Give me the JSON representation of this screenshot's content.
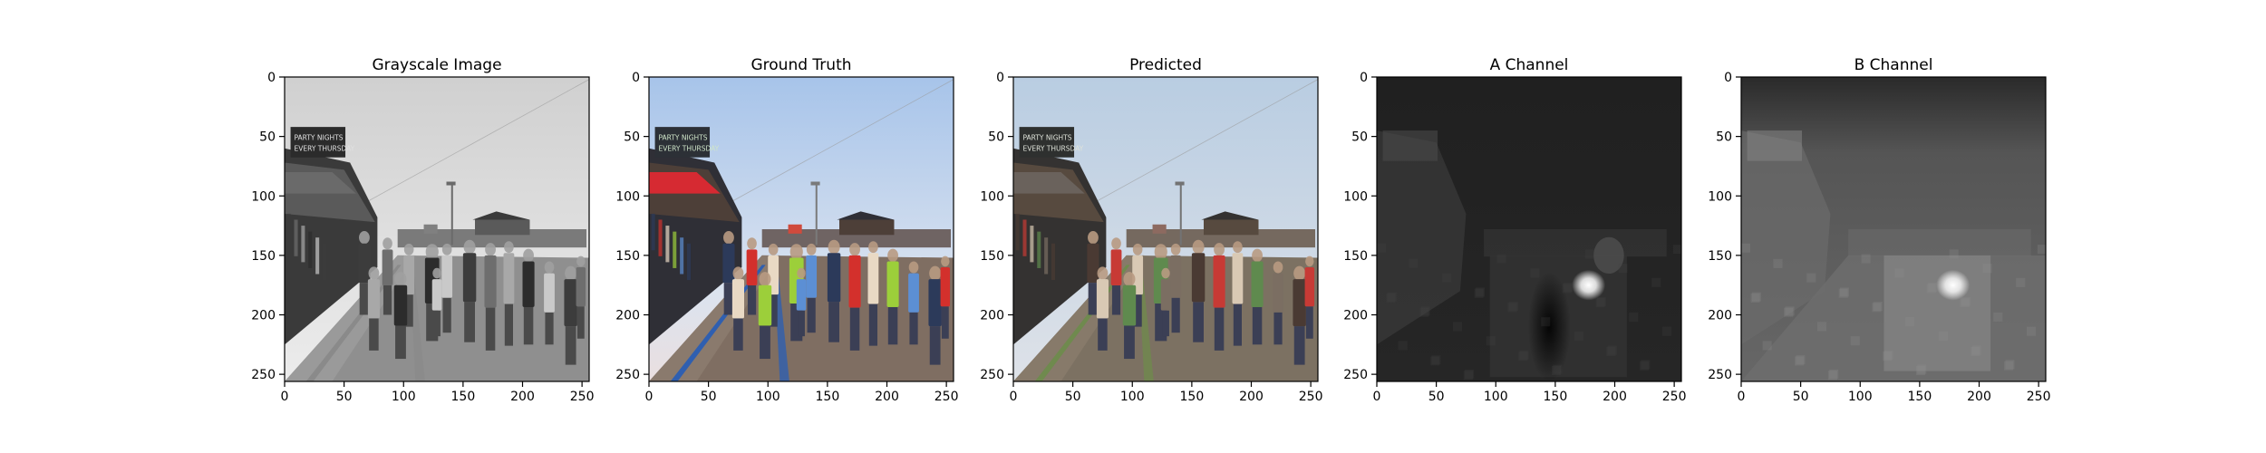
{
  "figure": {
    "background": "#ffffff"
  },
  "chart_data": [
    {
      "type": "heatmap",
      "title": "Grayscale Image",
      "content": "grayscale photo of a crowded boardwalk with shops and a sign",
      "colormap": "gray",
      "xlim": [
        0,
        256
      ],
      "ylim": [
        256,
        0
      ],
      "x_ticks": [
        0,
        50,
        100,
        150,
        200,
        250
      ],
      "y_ticks": [
        0,
        50,
        100,
        150,
        200,
        250
      ],
      "sign_text": [
        "PARTY NIGHTS",
        "EVERY THURSDAY"
      ],
      "grid": false
    },
    {
      "type": "heatmap",
      "title": "Ground Truth",
      "content": "original color photo of the boardwalk scene",
      "colormap": "rgb",
      "xlim": [
        0,
        256
      ],
      "ylim": [
        256,
        0
      ],
      "x_ticks": [
        0,
        50,
        100,
        150,
        200,
        250
      ],
      "y_ticks": [
        0,
        50,
        100,
        150,
        200,
        250
      ],
      "sign_text": [
        "PARTY NIGHTS",
        "EVERY THURSDAY"
      ],
      "grid": false
    },
    {
      "type": "heatmap",
      "title": "Predicted",
      "content": "model-colorized version of the boardwalk scene",
      "colormap": "rgb",
      "xlim": [
        0,
        256
      ],
      "ylim": [
        256,
        0
      ],
      "x_ticks": [
        0,
        50,
        100,
        150,
        200,
        250
      ],
      "y_ticks": [
        0,
        50,
        100,
        150,
        200,
        250
      ],
      "sign_text": [
        "PARTY NIGHTS",
        "EVERY THURSDAY"
      ],
      "grid": false
    },
    {
      "type": "heatmap",
      "title": "A Channel",
      "content": "predicted A chroma channel, mostly dark with a bright spot near the center",
      "colormap": "gray",
      "xlim": [
        0,
        256
      ],
      "ylim": [
        256,
        0
      ],
      "x_ticks": [
        0,
        50,
        100,
        150,
        200,
        250
      ],
      "y_ticks": [
        0,
        50,
        100,
        150,
        200,
        250
      ],
      "grid": false
    },
    {
      "type": "heatmap",
      "title": "B Channel",
      "content": "predicted B chroma channel, mid-gray with a bright spot near the center",
      "colormap": "gray",
      "xlim": [
        0,
        256
      ],
      "ylim": [
        256,
        0
      ],
      "x_ticks": [
        0,
        50,
        100,
        150,
        200,
        250
      ],
      "y_ticks": [
        0,
        50,
        100,
        150,
        200,
        250
      ],
      "grid": false
    }
  ]
}
